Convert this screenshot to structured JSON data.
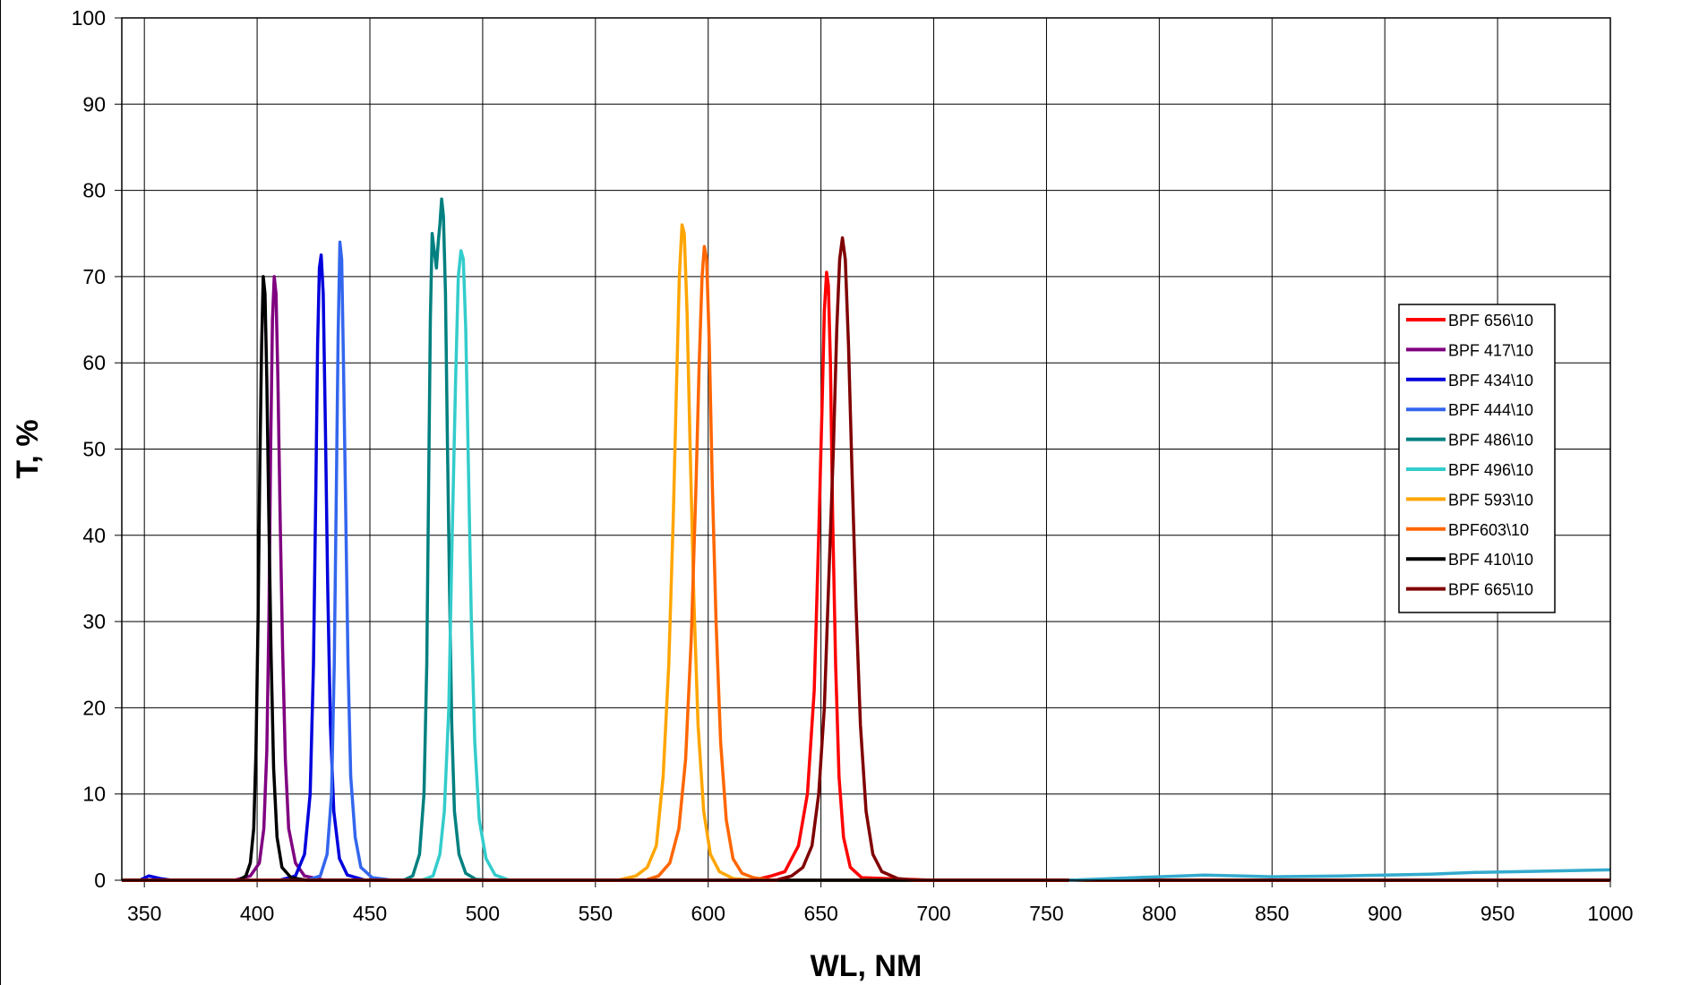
{
  "chart_data": {
    "type": "line",
    "title": "",
    "xlabel": "WL, NM",
    "ylabel": "T, %",
    "xlim": [
      340,
      1000
    ],
    "ylim": [
      0,
      100
    ],
    "x_ticks": [
      350,
      400,
      450,
      500,
      550,
      600,
      650,
      700,
      750,
      800,
      850,
      900,
      950,
      1000
    ],
    "y_ticks": [
      0,
      10,
      20,
      30,
      40,
      50,
      60,
      70,
      80,
      90,
      100
    ],
    "grid": true,
    "legend_position": "right",
    "series": [
      {
        "name": "BPF 656\\10",
        "color": "#ff0000",
        "points": [
          [
            340,
            0
          ],
          [
            620,
            0
          ],
          [
            628,
            0.5
          ],
          [
            634,
            1
          ],
          [
            640,
            4
          ],
          [
            644,
            10
          ],
          [
            647,
            22
          ],
          [
            649,
            40
          ],
          [
            650.5,
            55
          ],
          [
            651.5,
            66
          ],
          [
            652.5,
            70.5
          ],
          [
            653.3,
            69
          ],
          [
            654.2,
            60
          ],
          [
            655.2,
            42
          ],
          [
            656.5,
            25
          ],
          [
            658,
            12
          ],
          [
            660,
            5
          ],
          [
            663,
            1.5
          ],
          [
            668,
            0.3
          ],
          [
            700,
            0
          ],
          [
            1000,
            0
          ]
        ]
      },
      {
        "name": "BPF 417\\10",
        "color": "#800080",
        "points": [
          [
            340,
            0
          ],
          [
            390,
            0
          ],
          [
            397,
            0.5
          ],
          [
            401,
            2
          ],
          [
            403,
            6
          ],
          [
            404.3,
            15
          ],
          [
            405.2,
            30
          ],
          [
            406,
            50
          ],
          [
            406.8,
            65
          ],
          [
            407.6,
            70
          ],
          [
            408.4,
            68
          ],
          [
            409.2,
            58
          ],
          [
            410.2,
            42
          ],
          [
            411.3,
            27
          ],
          [
            412.5,
            14
          ],
          [
            414,
            6
          ],
          [
            417,
            2
          ],
          [
            421,
            0.5
          ],
          [
            430,
            0
          ],
          [
            1000,
            0
          ]
        ]
      },
      {
        "name": "BPF 434\\10",
        "color": "#0000dd",
        "points": [
          [
            340,
            0
          ],
          [
            348,
            0
          ],
          [
            352,
            0.5
          ],
          [
            357,
            0.2
          ],
          [
            362,
            0
          ],
          [
            410,
            0
          ],
          [
            417,
            0.5
          ],
          [
            421,
            3
          ],
          [
            423.5,
            10
          ],
          [
            425,
            25
          ],
          [
            426,
            45
          ],
          [
            426.8,
            62
          ],
          [
            427.6,
            71
          ],
          [
            428.4,
            72.5
          ],
          [
            429.3,
            68
          ],
          [
            430.3,
            52
          ],
          [
            431.3,
            34
          ],
          [
            432.5,
            18
          ],
          [
            434,
            8
          ],
          [
            436.5,
            2.5
          ],
          [
            440,
            0.6
          ],
          [
            448,
            0
          ],
          [
            1000,
            0
          ]
        ]
      },
      {
        "name": "BPF 444\\10",
        "color": "#3366ee",
        "points": [
          [
            340,
            0
          ],
          [
            422,
            0
          ],
          [
            428,
            0.5
          ],
          [
            431,
            3
          ],
          [
            433,
            10
          ],
          [
            434.2,
            25
          ],
          [
            435.1,
            45
          ],
          [
            435.9,
            63
          ],
          [
            436.7,
            74
          ],
          [
            437.5,
            72
          ],
          [
            438.3,
            60
          ],
          [
            439.3,
            42
          ],
          [
            440.3,
            25
          ],
          [
            441.5,
            12
          ],
          [
            443.5,
            5
          ],
          [
            446,
            1.5
          ],
          [
            451,
            0.3
          ],
          [
            460,
            0
          ],
          [
            1000,
            0
          ]
        ]
      },
      {
        "name": "BPF 486\\10",
        "color": "#008080",
        "points": [
          [
            340,
            0
          ],
          [
            465,
            0
          ],
          [
            469,
            0.5
          ],
          [
            472,
            3
          ],
          [
            474,
            10
          ],
          [
            475.2,
            25
          ],
          [
            476,
            45
          ],
          [
            476.8,
            65
          ],
          [
            477.6,
            75
          ],
          [
            478.5,
            73
          ],
          [
            479.5,
            71
          ],
          [
            480.3,
            74
          ],
          [
            481,
            76
          ],
          [
            481.8,
            79
          ],
          [
            482.6,
            77
          ],
          [
            483.5,
            68
          ],
          [
            484.3,
            52
          ],
          [
            485.3,
            34
          ],
          [
            486.3,
            18
          ],
          [
            487.5,
            8
          ],
          [
            489.5,
            3
          ],
          [
            492.5,
            0.8
          ],
          [
            497,
            0.1
          ],
          [
            505,
            0
          ],
          [
            1000,
            0
          ]
        ]
      },
      {
        "name": "BPF 496\\10",
        "color": "#33cccc",
        "points": [
          [
            340,
            0
          ],
          [
            473,
            0
          ],
          [
            478,
            0.5
          ],
          [
            481,
            3
          ],
          [
            483,
            8
          ],
          [
            485,
            20
          ],
          [
            486.5,
            40
          ],
          [
            488,
            58
          ],
          [
            489.2,
            70
          ],
          [
            490.4,
            73
          ],
          [
            491.4,
            72
          ],
          [
            492.5,
            64
          ],
          [
            493.7,
            48
          ],
          [
            495,
            30
          ],
          [
            496.5,
            16
          ],
          [
            498.5,
            7
          ],
          [
            501.5,
            2.5
          ],
          [
            505.5,
            0.6
          ],
          [
            512,
            0
          ],
          [
            1000,
            0
          ]
        ]
      },
      {
        "name": "BPF 593\\10",
        "color": "#ffa500",
        "points": [
          [
            340,
            0
          ],
          [
            560,
            0
          ],
          [
            568,
            0.5
          ],
          [
            573,
            1.5
          ],
          [
            577,
            4
          ],
          [
            580,
            12
          ],
          [
            582.5,
            25
          ],
          [
            584.5,
            42
          ],
          [
            586,
            58
          ],
          [
            587.2,
            70
          ],
          [
            588.4,
            76
          ],
          [
            589.4,
            75
          ],
          [
            590.6,
            66
          ],
          [
            592,
            50
          ],
          [
            593.6,
            33
          ],
          [
            595.5,
            18
          ],
          [
            598,
            8
          ],
          [
            601,
            3
          ],
          [
            605,
            1
          ],
          [
            611,
            0.2
          ],
          [
            620,
            0
          ],
          [
            1000,
            0
          ]
        ]
      },
      {
        "name": "BPF603\\10",
        "color": "#ff6600",
        "points": [
          [
            340,
            0
          ],
          [
            572,
            0
          ],
          [
            578,
            0.5
          ],
          [
            583,
            2
          ],
          [
            587,
            6
          ],
          [
            590,
            14
          ],
          [
            592.5,
            28
          ],
          [
            594.5,
            45
          ],
          [
            596,
            60
          ],
          [
            597.3,
            70
          ],
          [
            598.3,
            73.5
          ],
          [
            599.3,
            72
          ],
          [
            600.5,
            62
          ],
          [
            601.8,
            46
          ],
          [
            603.5,
            30
          ],
          [
            605.5,
            16
          ],
          [
            608,
            7
          ],
          [
            611,
            2.5
          ],
          [
            615,
            0.8
          ],
          [
            620,
            0.3
          ],
          [
            628,
            0
          ],
          [
            1000,
            0
          ]
        ]
      },
      {
        "name": "BPF 410\\10",
        "color": "#000000",
        "points": [
          [
            340,
            0
          ],
          [
            392,
            0
          ],
          [
            395,
            0.5
          ],
          [
            397,
            2
          ],
          [
            398.5,
            6
          ],
          [
            399.5,
            15
          ],
          [
            400.4,
            30
          ],
          [
            401.2,
            48
          ],
          [
            402,
            62
          ],
          [
            402.7,
            70
          ],
          [
            403.5,
            68
          ],
          [
            404.3,
            58
          ],
          [
            405.2,
            42
          ],
          [
            406.2,
            26
          ],
          [
            407.3,
            13
          ],
          [
            408.8,
            5
          ],
          [
            411,
            1.5
          ],
          [
            415,
            0.3
          ],
          [
            422,
            0
          ],
          [
            1000,
            0
          ]
        ]
      },
      {
        "name": "BPF 665\\10",
        "color": "#800000",
        "points": [
          [
            340,
            0
          ],
          [
            630,
            0
          ],
          [
            637,
            0.5
          ],
          [
            642,
            1.5
          ],
          [
            646,
            4
          ],
          [
            649,
            10
          ],
          [
            651.5,
            20
          ],
          [
            653.5,
            35
          ],
          [
            655.5,
            50
          ],
          [
            657,
            64
          ],
          [
            658.3,
            72
          ],
          [
            659.5,
            74.5
          ],
          [
            660.8,
            72
          ],
          [
            662.2,
            62
          ],
          [
            663.8,
            47
          ],
          [
            665.5,
            32
          ],
          [
            667.5,
            18
          ],
          [
            670,
            8
          ],
          [
            673,
            3
          ],
          [
            677,
            1
          ],
          [
            684,
            0.2
          ],
          [
            692,
            0
          ],
          [
            1000,
            0
          ]
        ]
      },
      {
        "name": "",
        "color": "#33aacc",
        "points": [
          [
            760,
            0
          ],
          [
            800,
            0.4
          ],
          [
            820,
            0.6
          ],
          [
            850,
            0.4
          ],
          [
            880,
            0.5
          ],
          [
            900,
            0.6
          ],
          [
            920,
            0.7
          ],
          [
            940,
            0.9
          ],
          [
            960,
            1.0
          ],
          [
            980,
            1.1
          ],
          [
            1000,
            1.2
          ]
        ]
      }
    ]
  }
}
